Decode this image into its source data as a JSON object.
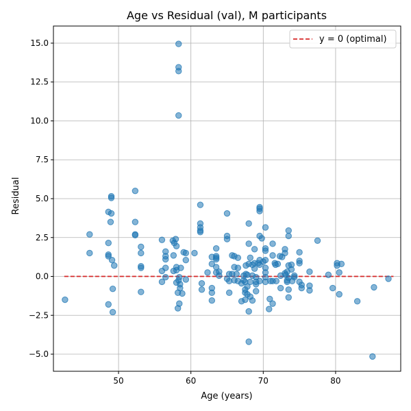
{
  "chart_data": {
    "type": "scatter",
    "title": "Age vs Residual (val), M participants",
    "xlabel": "Age (years)",
    "ylabel": "Residual",
    "xlim": [
      41,
      89
    ],
    "ylim": [
      -6.1,
      16.1
    ],
    "xticks": [
      50,
      60,
      70,
      80
    ],
    "yticks": [
      -5.0,
      -2.5,
      0.0,
      2.5,
      5.0,
      7.5,
      10.0,
      12.5,
      15.0
    ],
    "ytick_labels": [
      "−5.0",
      "−2.5",
      "0.0",
      "2.5",
      "5.0",
      "7.5",
      "10.0",
      "12.5",
      "15.0"
    ],
    "grid": true,
    "legend_position": "top-right",
    "reference_line": {
      "label": "y = 0 (optimal)",
      "y": 0,
      "x_range": [
        42.5,
        88
      ],
      "color": "#d62728",
      "style": "dashed"
    },
    "series": [
      {
        "color": "#1f77b4",
        "points": [
          [
            42.6,
            -1.5
          ],
          [
            46.0,
            2.7
          ],
          [
            46.0,
            1.5
          ],
          [
            48.6,
            4.15
          ],
          [
            48.6,
            2.15
          ],
          [
            48.6,
            1.4
          ],
          [
            48.6,
            1.3
          ],
          [
            48.6,
            -1.8
          ],
          [
            49.0,
            5.15
          ],
          [
            49.0,
            5.05
          ],
          [
            49.0,
            4.05
          ],
          [
            48.9,
            3.5
          ],
          [
            49.1,
            1.05
          ],
          [
            49.2,
            -0.8
          ],
          [
            49.2,
            -2.3
          ],
          [
            49.4,
            0.7
          ],
          [
            52.3,
            5.5
          ],
          [
            52.3,
            3.5
          ],
          [
            52.3,
            2.7
          ],
          [
            52.3,
            2.65
          ],
          [
            53.1,
            1.9
          ],
          [
            53.1,
            1.5
          ],
          [
            53.1,
            0.65
          ],
          [
            53.1,
            0.55
          ],
          [
            53.1,
            -1.0
          ],
          [
            56.0,
            2.35
          ],
          [
            56.0,
            0.35
          ],
          [
            56.0,
            -0.35
          ],
          [
            56.5,
            1.6
          ],
          [
            56.5,
            1.3
          ],
          [
            56.5,
            1.1
          ],
          [
            56.5,
            0.55
          ],
          [
            56.5,
            -0.05
          ],
          [
            57.5,
            2.3
          ],
          [
            57.7,
            2.15
          ],
          [
            57.9,
            2.4
          ],
          [
            58.0,
            1.95
          ],
          [
            57.6,
            1.35
          ],
          [
            57.6,
            0.35
          ],
          [
            58.0,
            0.6
          ],
          [
            58.0,
            0.4
          ],
          [
            58.0,
            -0.4
          ],
          [
            58.2,
            -1.05
          ],
          [
            58.2,
            -2.05
          ],
          [
            58.3,
            -0.25
          ],
          [
            58.4,
            -0.05
          ],
          [
            58.5,
            -0.5
          ],
          [
            58.5,
            -0.75
          ],
          [
            58.4,
            -1.75
          ],
          [
            58.8,
            -1.1
          ],
          [
            58.6,
            0.55
          ],
          [
            58.3,
            14.95
          ],
          [
            58.3,
            13.45
          ],
          [
            58.3,
            13.2
          ],
          [
            58.3,
            10.35
          ],
          [
            59.0,
            1.55
          ],
          [
            59.3,
            1.5
          ],
          [
            59.3,
            1.05
          ],
          [
            59.3,
            -0.2
          ],
          [
            60.5,
            1.5
          ],
          [
            61.3,
            4.6
          ],
          [
            61.3,
            3.4
          ],
          [
            61.3,
            3.15
          ],
          [
            61.3,
            2.95
          ],
          [
            61.3,
            2.85
          ],
          [
            61.5,
            -0.45
          ],
          [
            61.5,
            -0.85
          ],
          [
            62.3,
            0.25
          ],
          [
            62.9,
            1.25
          ],
          [
            62.9,
            0.8
          ],
          [
            62.9,
            -0.75
          ],
          [
            62.9,
            -1.05
          ],
          [
            62.9,
            -1.55
          ],
          [
            63.5,
            1.8
          ],
          [
            63.5,
            1.3
          ],
          [
            63.5,
            1.2
          ],
          [
            63.5,
            1.1
          ],
          [
            63.5,
            0.6
          ],
          [
            63.5,
            0.25
          ],
          [
            63.9,
            0.3
          ],
          [
            63.9,
            0.05
          ],
          [
            65.0,
            4.05
          ],
          [
            65.0,
            2.6
          ],
          [
            65.0,
            2.4
          ],
          [
            65.0,
            -0.15
          ],
          [
            65.3,
            0.15
          ],
          [
            65.3,
            -0.3
          ],
          [
            65.3,
            -1.05
          ],
          [
            65.7,
            1.35
          ],
          [
            65.7,
            0.15
          ],
          [
            66.0,
            1.3
          ],
          [
            66.0,
            0.6
          ],
          [
            66.0,
            -0.25
          ],
          [
            66.3,
            0.15
          ],
          [
            66.5,
            1.2
          ],
          [
            66.5,
            0.55
          ],
          [
            66.5,
            -0.3
          ],
          [
            67.0,
            -0.45
          ],
          [
            67.0,
            -1.6
          ],
          [
            67.3,
            -0.25
          ],
          [
            67.3,
            0.05
          ],
          [
            67.5,
            -0.35
          ],
          [
            67.5,
            -0.85
          ],
          [
            67.5,
            -1.05
          ],
          [
            67.5,
            -1.5
          ],
          [
            67.6,
            0.7
          ],
          [
            67.6,
            0.15
          ],
          [
            67.8,
            0.1
          ],
          [
            67.8,
            -0.65
          ],
          [
            67.8,
            -1.15
          ],
          [
            68.0,
            3.4
          ],
          [
            68.0,
            2.1
          ],
          [
            68.0,
            0.8
          ],
          [
            68.0,
            -2.25
          ],
          [
            68.0,
            -4.2
          ],
          [
            68.2,
            1.2
          ],
          [
            68.2,
            -0.35
          ],
          [
            68.2,
            -1.3
          ],
          [
            68.5,
            0.75
          ],
          [
            68.5,
            0.05
          ],
          [
            68.5,
            -1.55
          ],
          [
            68.8,
            1.75
          ],
          [
            68.8,
            0.85
          ],
          [
            68.8,
            0.5
          ],
          [
            69.0,
            -0.05
          ],
          [
            69.0,
            -0.35
          ],
          [
            69.0,
            -0.5
          ],
          [
            69.0,
            -0.95
          ],
          [
            69.3,
            0.85
          ],
          [
            69.5,
            4.45
          ],
          [
            69.5,
            4.35
          ],
          [
            69.5,
            4.2
          ],
          [
            69.5,
            2.6
          ],
          [
            69.5,
            1.05
          ],
          [
            69.5,
            0.75
          ],
          [
            69.5,
            -0.3
          ],
          [
            69.8,
            2.45
          ],
          [
            70.0,
            0.95
          ],
          [
            70.3,
            3.15
          ],
          [
            70.3,
            1.8
          ],
          [
            70.3,
            1.65
          ],
          [
            70.3,
            1.05
          ],
          [
            70.3,
            0.55
          ],
          [
            70.3,
            0.25
          ],
          [
            70.3,
            -0.05
          ],
          [
            70.3,
            -0.35
          ],
          [
            70.8,
            -2.1
          ],
          [
            70.9,
            -1.45
          ],
          [
            71.0,
            -0.3
          ],
          [
            71.3,
            2.1
          ],
          [
            71.3,
            1.35
          ],
          [
            71.3,
            -0.3
          ],
          [
            71.3,
            -1.75
          ],
          [
            71.6,
            0.85
          ],
          [
            71.7,
            0.75
          ],
          [
            71.8,
            -0.3
          ],
          [
            72.0,
            0.8
          ],
          [
            72.3,
            1.3
          ],
          [
            72.4,
            0.05
          ],
          [
            72.4,
            -0.75
          ],
          [
            72.6,
            1.25
          ],
          [
            73.0,
            1.75
          ],
          [
            73.0,
            1.5
          ],
          [
            73.0,
            0.2
          ],
          [
            73.1,
            0.1
          ],
          [
            73.3,
            0.3
          ],
          [
            73.3,
            -0.25
          ],
          [
            73.3,
            -0.35
          ],
          [
            73.5,
            2.95
          ],
          [
            73.5,
            2.6
          ],
          [
            73.5,
            0.7
          ],
          [
            73.5,
            -0.1
          ],
          [
            73.5,
            -0.85
          ],
          [
            73.5,
            -1.35
          ],
          [
            73.9,
            0.75
          ],
          [
            73.9,
            0.45
          ],
          [
            74.0,
            -0.3
          ],
          [
            74.3,
            0.05
          ],
          [
            74.3,
            -0.05
          ],
          [
            75.0,
            1.55
          ],
          [
            75.0,
            1.0
          ],
          [
            75.0,
            0.85
          ],
          [
            75.0,
            -0.35
          ],
          [
            75.3,
            -0.55
          ],
          [
            75.3,
            -0.75
          ],
          [
            76.4,
            0.3
          ],
          [
            76.4,
            -0.6
          ],
          [
            76.4,
            -0.9
          ],
          [
            77.5,
            2.3
          ],
          [
            79.0,
            0.1
          ],
          [
            79.6,
            -0.75
          ],
          [
            80.2,
            0.85
          ],
          [
            80.2,
            0.7
          ],
          [
            80.5,
            0.25
          ],
          [
            80.5,
            -1.15
          ],
          [
            80.8,
            0.8
          ],
          [
            83.0,
            -1.6
          ],
          [
            85.1,
            -5.15
          ],
          [
            85.3,
            -0.7
          ],
          [
            87.3,
            -0.15
          ]
        ]
      }
    ]
  }
}
